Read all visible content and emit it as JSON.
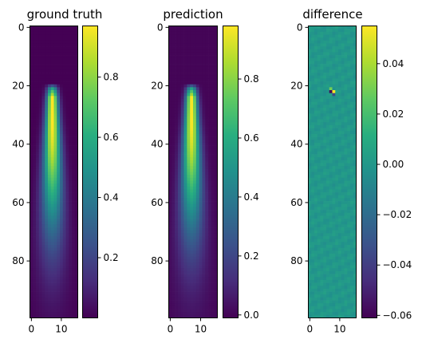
{
  "figure": {
    "panels": [
      {
        "title": "ground truth"
      },
      {
        "title": "prediction"
      },
      {
        "title": "difference"
      }
    ]
  },
  "chart_data": [
    {
      "type": "heatmap",
      "title": "ground truth",
      "rows": 100,
      "cols": 16,
      "colormap": "viridis",
      "xticks": [
        0,
        10
      ],
      "yticks": [
        0,
        20,
        40,
        60,
        80
      ],
      "field": {
        "kind": "plume",
        "top_row": 21,
        "center_col": 7,
        "peak": 0.97,
        "fade_row": 95
      },
      "vmin": 0.0,
      "vmax": 0.97,
      "colorbar_ticks": [
        0.2,
        0.4,
        0.6,
        0.8
      ],
      "colorbar_labels": [
        "0.2",
        "0.4",
        "0.6",
        "0.8"
      ]
    },
    {
      "type": "heatmap",
      "title": "prediction",
      "rows": 100,
      "cols": 16,
      "colormap": "viridis",
      "xticks": [
        0,
        10
      ],
      "yticks": [
        0,
        20,
        40,
        60,
        80
      ],
      "field": {
        "kind": "plume",
        "top_row": 21,
        "center_col": 7,
        "peak": 0.97,
        "fade_row": 95
      },
      "vmin": -0.01,
      "vmax": 0.98,
      "colorbar_ticks": [
        0.0,
        0.2,
        0.4,
        0.6,
        0.8
      ],
      "colorbar_labels": [
        "0.0",
        "0.2",
        "0.4",
        "0.6",
        "0.8"
      ]
    },
    {
      "type": "heatmap",
      "title": "difference",
      "rows": 100,
      "cols": 16,
      "colormap": "viridis",
      "xticks": [
        0,
        10
      ],
      "yticks": [
        0,
        20,
        40,
        60,
        80
      ],
      "field": {
        "kind": "difference",
        "baseline": 0.0,
        "spike_row": 22,
        "spike_col": 7,
        "spike_max": 0.055,
        "spike_min": -0.06
      },
      "vmin": -0.061,
      "vmax": 0.055,
      "colorbar_ticks": [
        -0.06,
        -0.04,
        -0.02,
        0.0,
        0.02,
        0.04
      ],
      "colorbar_labels": [
        "−0.06",
        "−0.04",
        "−0.02",
        "0.00",
        "0.02",
        "0.04"
      ]
    }
  ]
}
